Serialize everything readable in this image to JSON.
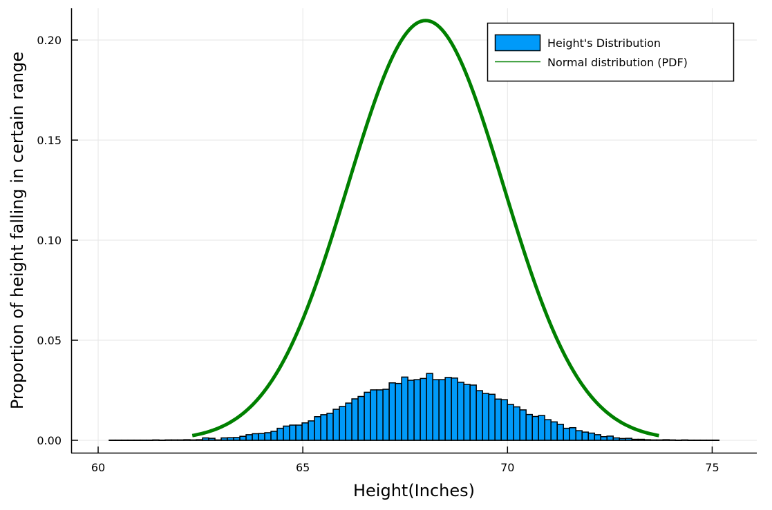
{
  "chart_data": {
    "type": "bar",
    "title": "",
    "xlabel": "Height(Inches)",
    "ylabel": "Proportion of height falling in certain range",
    "xlim": [
      59.33,
      76.07
    ],
    "ylim": [
      -0.0062,
      0.2158
    ],
    "xticks": [
      60,
      65,
      70,
      75
    ],
    "xtick_labels": [
      "60",
      "65",
      "70",
      "75"
    ],
    "yticks": [
      0.0,
      0.05,
      0.1,
      0.15,
      0.2
    ],
    "ytick_labels": [
      "0.00",
      "0.05",
      "0.10",
      "0.15",
      "0.20"
    ],
    "grid": true,
    "legend_position": "top-right",
    "series": [
      {
        "name": "Height's Distribution",
        "type": "histogram",
        "color": "#009AF9",
        "bin_start": 60.27,
        "bin_width": 0.152,
        "values": [
          0.0001,
          0.0001,
          0.0001,
          0.0001,
          0.0001,
          0.0001,
          0.0001,
          0.0002,
          0.0001,
          0.0002,
          0.0002,
          0.0002,
          0.0003,
          0.0002,
          0.0003,
          0.0012,
          0.001,
          0.0002,
          0.0012,
          0.0013,
          0.0014,
          0.002,
          0.0028,
          0.0033,
          0.0034,
          0.0038,
          0.0045,
          0.006,
          0.0071,
          0.0076,
          0.0076,
          0.0087,
          0.0097,
          0.0118,
          0.0128,
          0.0135,
          0.0155,
          0.0169,
          0.0186,
          0.0207,
          0.0219,
          0.024,
          0.0252,
          0.0252,
          0.0255,
          0.0287,
          0.0284,
          0.0316,
          0.03,
          0.0303,
          0.0309,
          0.0334,
          0.0303,
          0.0303,
          0.0314,
          0.0311,
          0.029,
          0.0279,
          0.0276,
          0.0248,
          0.0234,
          0.023,
          0.0206,
          0.0203,
          0.0179,
          0.0167,
          0.0152,
          0.0129,
          0.0119,
          0.0124,
          0.0103,
          0.0092,
          0.008,
          0.006,
          0.0063,
          0.0048,
          0.0041,
          0.0036,
          0.0028,
          0.0018,
          0.0021,
          0.0012,
          0.0009,
          0.001,
          0.0005,
          0.0005,
          0.0003,
          0.0002,
          0.0002,
          0.0003,
          0.0002,
          0.0001,
          0.0002,
          0.0001,
          0.0001,
          0.0001,
          0.0001,
          0.0001
        ]
      },
      {
        "name": "Normal distribution (PDF)",
        "type": "line",
        "color": "#008000",
        "mean": 68.0,
        "std": 1.902,
        "x_range": [
          62.3,
          73.7
        ],
        "peak_value": 0.2097
      }
    ]
  },
  "legend": {
    "items": [
      {
        "label": "Height's Distribution",
        "color": "#009AF9"
      },
      {
        "label": "Normal distribution (PDF)",
        "color": "#008000"
      }
    ]
  }
}
